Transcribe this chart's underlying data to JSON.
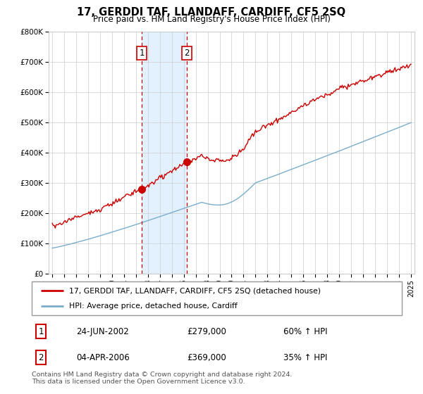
{
  "title": "17, GERDDI TAF, LLANDAFF, CARDIFF, CF5 2SQ",
  "subtitle": "Price paid vs. HM Land Registry's House Price Index (HPI)",
  "legend_line1": "17, GERDDI TAF, LLANDAFF, CARDIFF, CF5 2SQ (detached house)",
  "legend_line2": "HPI: Average price, detached house, Cardiff",
  "transaction1_date": "24-JUN-2002",
  "transaction1_price": "£279,000",
  "transaction1_hpi": "60% ↑ HPI",
  "transaction2_date": "04-APR-2006",
  "transaction2_price": "£369,000",
  "transaction2_hpi": "35% ↑ HPI",
  "footer": "Contains HM Land Registry data © Crown copyright and database right 2024.\nThis data is licensed under the Open Government Licence v3.0.",
  "ylim": [
    0,
    800000
  ],
  "yticks": [
    0,
    100000,
    200000,
    300000,
    400000,
    500000,
    600000,
    700000,
    800000
  ],
  "ytick_labels": [
    "£0",
    "£100K",
    "£200K",
    "£300K",
    "£400K",
    "£500K",
    "£600K",
    "£700K",
    "£800K"
  ],
  "red_color": "#cc0000",
  "blue_color": "#7aadcc",
  "shade_color": "#ddeeff",
  "grid_color": "#cccccc",
  "background_color": "#ffffff",
  "vline1_x": 2002.48,
  "vline2_x": 2006.26,
  "vline1_marker_y": 279000,
  "vline2_marker_y": 369000,
  "xmin": 1994.7,
  "xmax": 2025.3
}
